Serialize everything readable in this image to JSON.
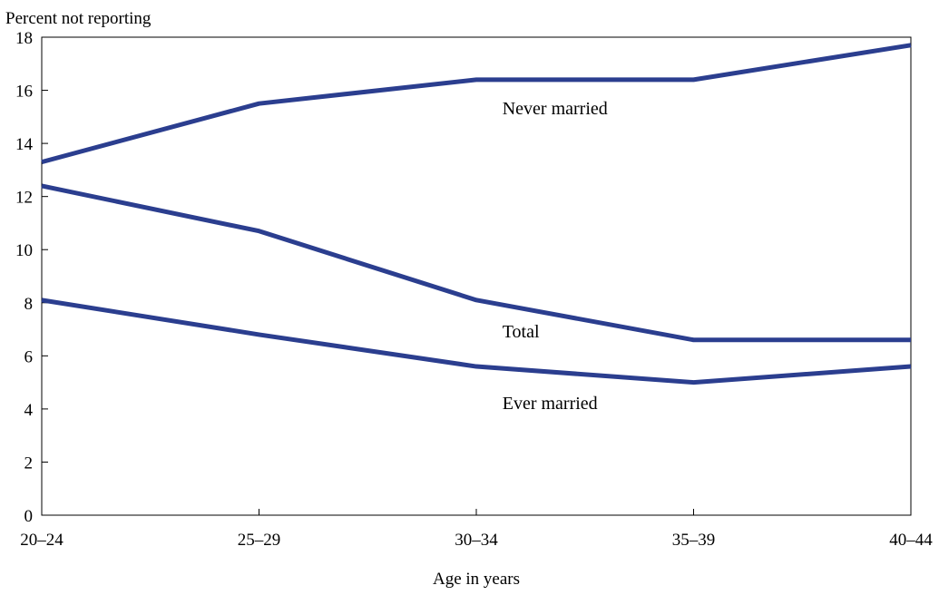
{
  "chart_data": {
    "type": "line",
    "ylabel": "Percent not reporting",
    "xlabel": "Age in years",
    "categories": [
      "20–24",
      "25–29",
      "30–34",
      "35–39",
      "40–44"
    ],
    "ylim": [
      0,
      18
    ],
    "yticks": [
      0,
      2,
      4,
      6,
      8,
      10,
      12,
      14,
      16,
      18
    ],
    "grid": false,
    "legend": "inline",
    "line_color": "#2b3e8f",
    "series": [
      {
        "name": "Never married",
        "values": [
          13.3,
          15.5,
          16.4,
          16.4,
          17.7
        ],
        "label_at": [
          2.12,
          15.1
        ]
      },
      {
        "name": "Total",
        "values": [
          12.4,
          10.7,
          8.1,
          6.6,
          6.6
        ],
        "label_at": [
          2.12,
          6.7
        ]
      },
      {
        "name": "Ever married",
        "values": [
          8.1,
          6.8,
          5.6,
          5.0,
          5.6
        ],
        "label_at": [
          2.12,
          4.0
        ]
      }
    ]
  }
}
